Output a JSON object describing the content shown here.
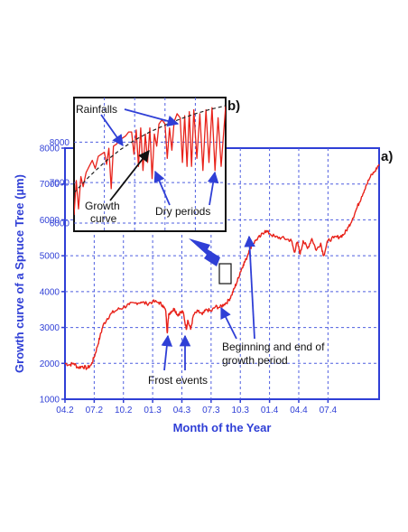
{
  "chart_data": {
    "type": "line",
    "xlabel": "Month of the Year",
    "ylabel": "Growth curve of a Spruce Tree (µm)",
    "x_ticks": [
      "04.2",
      "07.2",
      "10.2",
      "01.3",
      "04.3",
      "07.3",
      "10.3",
      "01.4",
      "04.4",
      "07.4"
    ],
    "y_ticks": [
      1000,
      2000,
      3000,
      4000,
      5000,
      6000,
      7000,
      8000
    ],
    "ylim": [
      1000,
      8000
    ],
    "grid": true,
    "series": [
      {
        "values": [
          [
            0,
            2000
          ],
          [
            0.15,
            1960
          ],
          [
            0.3,
            2000
          ],
          [
            0.45,
            1880
          ],
          [
            0.6,
            1920
          ],
          [
            0.75,
            1860
          ],
          [
            0.9,
            1960
          ],
          [
            1.0,
            2180
          ],
          [
            1.1,
            2450
          ],
          [
            1.2,
            2750
          ],
          [
            1.3,
            3050
          ],
          [
            1.45,
            3250
          ],
          [
            1.6,
            3400
          ],
          [
            1.8,
            3500
          ],
          [
            2.0,
            3560
          ],
          [
            2.2,
            3640
          ],
          [
            2.4,
            3680
          ],
          [
            2.6,
            3710
          ],
          [
            2.8,
            3660
          ],
          [
            3.0,
            3720
          ],
          [
            3.2,
            3700
          ],
          [
            3.35,
            3620
          ],
          [
            3.45,
            3450
          ],
          [
            3.5,
            2850
          ],
          [
            3.55,
            3380
          ],
          [
            3.65,
            3460
          ],
          [
            3.75,
            3520
          ],
          [
            3.85,
            3350
          ],
          [
            3.95,
            3420
          ],
          [
            4.05,
            3420
          ],
          [
            4.15,
            2950
          ],
          [
            4.2,
            3200
          ],
          [
            4.3,
            2950
          ],
          [
            4.4,
            3350
          ],
          [
            4.55,
            3450
          ],
          [
            4.7,
            3360
          ],
          [
            4.85,
            3500
          ],
          [
            5.0,
            3450
          ],
          [
            5.15,
            3580
          ],
          [
            5.3,
            3560
          ],
          [
            5.45,
            3650
          ],
          [
            5.6,
            3750
          ],
          [
            5.7,
            3900
          ],
          [
            5.8,
            4100
          ],
          [
            5.9,
            4300
          ],
          [
            6.0,
            4550
          ],
          [
            6.1,
            4750
          ],
          [
            6.2,
            4900
          ],
          [
            6.3,
            5150
          ],
          [
            6.4,
            5300
          ],
          [
            6.55,
            5450
          ],
          [
            6.7,
            5550
          ],
          [
            6.85,
            5700
          ],
          [
            7.0,
            5620
          ],
          [
            7.2,
            5520
          ],
          [
            7.4,
            5500
          ],
          [
            7.6,
            5460
          ],
          [
            7.75,
            5420
          ],
          [
            7.85,
            5100
          ],
          [
            7.95,
            5380
          ],
          [
            8.05,
            5050
          ],
          [
            8.15,
            5420
          ],
          [
            8.3,
            5200
          ],
          [
            8.45,
            5480
          ],
          [
            8.6,
            5150
          ],
          [
            8.75,
            5350
          ],
          [
            8.85,
            5000
          ],
          [
            9.0,
            5420
          ],
          [
            9.2,
            5500
          ],
          [
            9.4,
            5530
          ],
          [
            9.55,
            5600
          ],
          [
            9.7,
            5800
          ],
          [
            9.85,
            6050
          ],
          [
            10.0,
            6350
          ],
          [
            10.15,
            6650
          ],
          [
            10.3,
            6950
          ],
          [
            10.45,
            7200
          ],
          [
            10.6,
            7350
          ],
          [
            10.75,
            7550
          ]
        ]
      }
    ],
    "inset": {
      "x_range": [
        5.96,
        6.19
      ],
      "points": [
        [
          0,
          6200
        ],
        [
          0.015,
          7050
        ],
        [
          0.03,
          6350
        ],
        [
          0.045,
          7150
        ],
        [
          0.06,
          6900
        ],
        [
          0.08,
          7250
        ],
        [
          0.1,
          7400
        ],
        [
          0.12,
          7550
        ],
        [
          0.14,
          7350
        ],
        [
          0.16,
          7650
        ],
        [
          0.18,
          7700
        ],
        [
          0.2,
          7750
        ],
        [
          0.215,
          7450
        ],
        [
          0.23,
          7850
        ],
        [
          0.245,
          6850
        ],
        [
          0.26,
          7900
        ],
        [
          0.28,
          7950
        ],
        [
          0.3,
          8050
        ],
        [
          0.32,
          8100
        ],
        [
          0.34,
          8150
        ],
        [
          0.36,
          8250
        ],
        [
          0.38,
          8250
        ],
        [
          0.395,
          7700
        ],
        [
          0.41,
          8300
        ],
        [
          0.425,
          7400
        ],
        [
          0.44,
          8350
        ],
        [
          0.455,
          7300
        ],
        [
          0.47,
          8200
        ],
        [
          0.485,
          7500
        ],
        [
          0.5,
          8350
        ],
        [
          0.515,
          7100
        ],
        [
          0.53,
          8200
        ],
        [
          0.545,
          7900
        ],
        [
          0.56,
          8450
        ],
        [
          0.58,
          8550
        ],
        [
          0.6,
          8450
        ],
        [
          0.615,
          7600
        ],
        [
          0.63,
          8350
        ],
        [
          0.645,
          7800
        ],
        [
          0.66,
          8500
        ],
        [
          0.68,
          8700
        ],
        [
          0.7,
          8600
        ],
        [
          0.715,
          7500
        ],
        [
          0.73,
          8650
        ],
        [
          0.745,
          7400
        ],
        [
          0.76,
          8750
        ],
        [
          0.775,
          7400
        ],
        [
          0.79,
          8800
        ],
        [
          0.81,
          7600
        ],
        [
          0.83,
          8700
        ],
        [
          0.85,
          7300
        ],
        [
          0.87,
          8800
        ],
        [
          0.89,
          7500
        ],
        [
          0.91,
          8850
        ],
        [
          0.93,
          7300
        ],
        [
          0.95,
          8600
        ],
        [
          0.97,
          7400
        ],
        [
          1.0,
          8900
        ]
      ],
      "envelope": [
        [
          0,
          6750
        ],
        [
          0.1,
          7150
        ],
        [
          0.2,
          7500
        ],
        [
          0.3,
          7800
        ],
        [
          0.4,
          8050
        ],
        [
          0.5,
          8250
        ],
        [
          0.6,
          8420
        ],
        [
          0.7,
          8570
        ],
        [
          0.8,
          8700
        ],
        [
          0.9,
          8810
        ],
        [
          1.0,
          8900
        ]
      ],
      "y_ticks": [
        6000,
        7000,
        8000
      ]
    }
  },
  "labels": {
    "panel_a": "a)",
    "panel_b": "b)",
    "rainfalls": "Rainfalls",
    "growth_curve_line1": "Growth",
    "growth_curve_line2": "curve",
    "dry_periods": "Dry periods",
    "frost_events": "Frost events",
    "growth_period_line1": "Beginning and end of",
    "growth_period_line2": "growth period"
  },
  "colors": {
    "axis": "#2f3fd6",
    "grid": "#4f5fe0",
    "series": "#e8221a",
    "arrow": "#2f3fd6",
    "envelope": "#222222"
  }
}
